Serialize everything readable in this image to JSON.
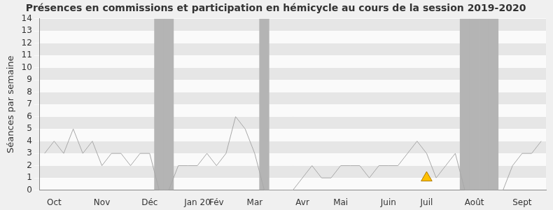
{
  "chart_data": {
    "type": "line",
    "title": "Présences en commissions et participation en hémicycle au cours de la session 2019-2020",
    "y_label": "Séances par semaine",
    "categories": [
      null,
      "Oct",
      null,
      null,
      null,
      null,
      "Nov",
      null,
      null,
      null,
      null,
      "Déc",
      null,
      null,
      null,
      null,
      "Jan 20",
      null,
      "Fév",
      null,
      null,
      null,
      "Mar",
      null,
      null,
      null,
      null,
      "Avr",
      null,
      null,
      null,
      "Mai",
      null,
      null,
      null,
      null,
      "Juin",
      null,
      null,
      null,
      "Juil",
      null,
      null,
      null,
      null,
      "Août",
      null,
      null,
      null,
      null,
      "Sept",
      null,
      null
    ],
    "series": [
      {
        "type": "bar",
        "color": "#b4b4b4",
        "values": [
          null,
          null,
          null,
          null,
          null,
          null,
          null,
          null,
          null,
          null,
          null,
          null,
          14,
          14,
          null,
          null,
          null,
          null,
          null,
          null,
          null,
          null,
          null,
          14,
          null,
          null,
          null,
          null,
          null,
          null,
          null,
          null,
          null,
          null,
          null,
          null,
          null,
          null,
          null,
          null,
          null,
          null,
          null,
          null,
          14,
          14,
          14,
          14,
          null,
          null,
          null,
          null,
          null
        ]
      },
      {
        "type": "line",
        "color": "#a8a8a8",
        "marker": "none",
        "line_style": "solid",
        "values": [
          3,
          4,
          3,
          5,
          3,
          4,
          2,
          3,
          3,
          2,
          3,
          3,
          0,
          0,
          2,
          2,
          2,
          3,
          2,
          3,
          6,
          5,
          3,
          0,
          0,
          0,
          0,
          1,
          2,
          1,
          1,
          2,
          2,
          2,
          1,
          2,
          2,
          2,
          3,
          4,
          3,
          1,
          2,
          3,
          0,
          0,
          0,
          0,
          0,
          2,
          3,
          3,
          4
        ]
      },
      {
        "type": "line",
        "color": "#ffc000",
        "marker": "triangle",
        "line_style": "none",
        "values": [
          null,
          null,
          null,
          null,
          null,
          null,
          null,
          null,
          null,
          null,
          null,
          null,
          null,
          null,
          null,
          null,
          null,
          null,
          null,
          null,
          null,
          null,
          null,
          null,
          null,
          null,
          null,
          null,
          null,
          null,
          null,
          null,
          null,
          null,
          null,
          null,
          null,
          null,
          null,
          null,
          1,
          null,
          null,
          null,
          null,
          null,
          null,
          null,
          null,
          null,
          null,
          null,
          null
        ]
      }
    ],
    "ylim": [
      0,
      14
    ],
    "yticks": [
      0,
      1,
      2,
      3,
      4,
      5,
      6,
      7,
      8,
      9,
      10,
      11,
      12,
      13,
      14
    ],
    "grid": true
  }
}
